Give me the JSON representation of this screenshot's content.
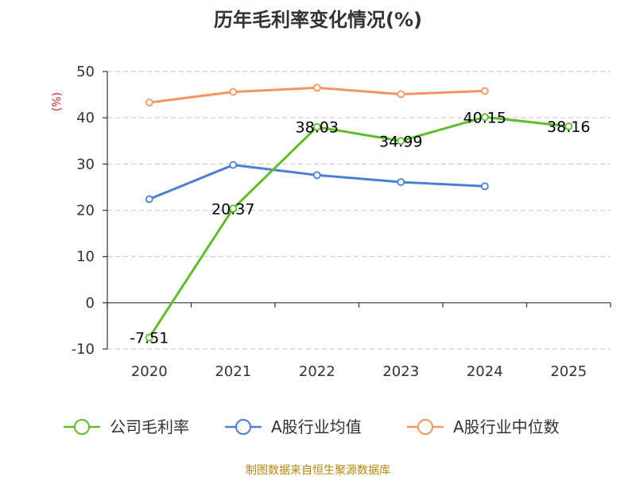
{
  "chart_data": {
    "type": "line",
    "title": "历年毛利率变化情况(%)",
    "ylabel": "(%)",
    "xlabel": "",
    "categories": [
      "2020",
      "2021",
      "2022",
      "2023",
      "2024",
      "2025"
    ],
    "ylim": [
      -10,
      50
    ],
    "yticks": [
      -10,
      0,
      10,
      20,
      30,
      40,
      50
    ],
    "grid": true,
    "legend_position": "bottom",
    "series": [
      {
        "name": "公司毛利率",
        "color": "#5cbf2a",
        "values": [
          -7.51,
          20.37,
          38.03,
          34.99,
          40.15,
          38.16
        ],
        "labels": [
          "-7.51",
          "20.37",
          "38.03",
          "34.99",
          "40.15",
          "38.16"
        ]
      },
      {
        "name": "A股行业均值",
        "color": "#4a7fd6",
        "values": [
          22.4,
          29.8,
          27.6,
          26.1,
          25.2,
          null
        ]
      },
      {
        "name": "A股行业中位数",
        "color": "#f59560",
        "values": [
          43.3,
          45.6,
          46.5,
          45.1,
          45.8,
          null
        ]
      }
    ],
    "source": "制图数据来自恒生聚源数据库"
  }
}
